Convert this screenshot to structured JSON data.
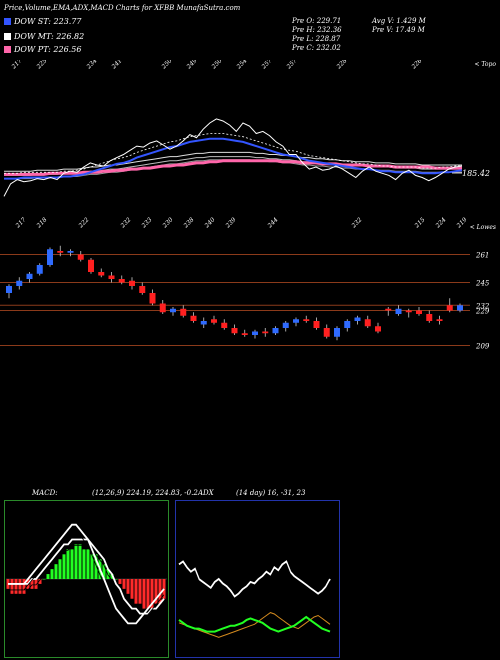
{
  "header": {
    "title": "Price,Volume,EMA,ADX,MACD Charts for XFBB MunafaSutra.com",
    "legend": [
      {
        "label": "DOW ST: 223.77",
        "color": "#3355ff"
      },
      {
        "label": "DOW MT: 226.82",
        "color": "#ffffff"
      },
      {
        "label": "DOW PT: 226.56",
        "color": "#ff66aa"
      }
    ],
    "stats_left": [
      "Pre O: 229.71",
      "Pre H: 232.36",
      "Pre L: 228.87",
      "Pre C: 232.02"
    ],
    "stats_right": [
      "Avg V: 1.429 M",
      "Pre V: 17.49 M"
    ]
  },
  "chart_data": [
    {
      "type": "line",
      "panel": "ema",
      "corner_label": "< Topo",
      "top_labels": [
        "217",
        "225",
        "",
        "234",
        "241",
        "",
        "250",
        "249",
        "250",
        "254",
        "257",
        "257",
        "",
        "228",
        "",
        "",
        "226"
      ],
      "bottom_labels": [
        "217",
        "218",
        "",
        "222",
        "",
        "232",
        "233",
        "230",
        "238",
        "240",
        "239",
        "",
        "244",
        "",
        "",
        "",
        "232",
        "",
        "",
        "215",
        "224",
        "219"
      ],
      "last_price_label": "185.42",
      "price": [
        188,
        200,
        204,
        202,
        203,
        205,
        204,
        206,
        204,
        210,
        212,
        211,
        216,
        220,
        218,
        217,
        222,
        225,
        228,
        232,
        236,
        235,
        239,
        241,
        237,
        233,
        236,
        241,
        247,
        244,
        252,
        258,
        262,
        260,
        256,
        250,
        258,
        255,
        248,
        250,
        246,
        240,
        236,
        228,
        228,
        220,
        214,
        216,
        213,
        214,
        217,
        214,
        210,
        206,
        212,
        216,
        212,
        210,
        208,
        204,
        210,
        213,
        208,
        206,
        203,
        206,
        210,
        214,
        216,
        217
      ],
      "ema_st": [
        205,
        205,
        205,
        206,
        206,
        206,
        206,
        206,
        206,
        207,
        207,
        208,
        209,
        211,
        213,
        215,
        217,
        219,
        220,
        222,
        225,
        227,
        229,
        231,
        233,
        235,
        236,
        238,
        240,
        241,
        242,
        243,
        243,
        243,
        242,
        241,
        240,
        238,
        236,
        234,
        232,
        230,
        228,
        227,
        226,
        224,
        222,
        221,
        220,
        219,
        218,
        217,
        216,
        215,
        214,
        214,
        213,
        212,
        212,
        211,
        211,
        211,
        211,
        210,
        210,
        210,
        211,
        211,
        212,
        213
      ],
      "ema_mt": [
        208,
        208,
        208,
        208,
        208,
        209,
        209,
        209,
        209,
        210,
        210,
        210,
        211,
        212,
        212,
        213,
        214,
        214,
        215,
        216,
        217,
        218,
        219,
        220,
        221,
        222,
        222,
        223,
        224,
        225,
        225,
        226,
        226,
        226,
        226,
        226,
        226,
        226,
        225,
        225,
        224,
        224,
        223,
        223,
        222,
        221,
        221,
        220,
        220,
        219,
        219,
        218,
        218,
        217,
        217,
        217,
        216,
        216,
        216,
        215,
        215,
        215,
        215,
        214,
        214,
        214,
        214,
        214,
        214,
        214
      ],
      "ema_pt": [
        209,
        209,
        209,
        209,
        209,
        209,
        209,
        210,
        210,
        210,
        210,
        210,
        211,
        211,
        211,
        212,
        212,
        213,
        213,
        214,
        214,
        215,
        215,
        216,
        217,
        217,
        218,
        218,
        219,
        220,
        220,
        221,
        221,
        222,
        222,
        222,
        222,
        222,
        222,
        222,
        222,
        222,
        221,
        221,
        221,
        220,
        220,
        220,
        219,
        219,
        219,
        218,
        218,
        218,
        218,
        217,
        217,
        217,
        217,
        216,
        216,
        216,
        216,
        216,
        216,
        215,
        215,
        215,
        215,
        215
      ],
      "ylim": [
        175,
        280
      ]
    },
    {
      "type": "candlestick",
      "panel": "price",
      "corner_label": "< Lowes",
      "levels": [
        261,
        245,
        232,
        229,
        209
      ],
      "candles": [
        [
          239,
          244,
          236,
          243,
          "up"
        ],
        [
          243,
          248,
          241,
          246,
          "up"
        ],
        [
          247,
          251,
          245,
          250,
          "up"
        ],
        [
          250,
          256,
          249,
          255,
          "up"
        ],
        [
          255,
          265,
          254,
          264,
          "up"
        ],
        [
          263,
          266,
          260,
          262,
          "down"
        ],
        [
          262,
          264,
          260,
          263,
          "up"
        ],
        [
          261,
          263,
          257,
          258,
          "down"
        ],
        [
          258,
          259,
          250,
          251,
          "down"
        ],
        [
          251,
          253,
          248,
          249,
          "down"
        ],
        [
          249,
          251,
          245,
          247,
          "down"
        ],
        [
          247,
          249,
          244,
          245,
          "down"
        ],
        [
          246,
          248,
          241,
          243,
          "down"
        ],
        [
          243,
          245,
          238,
          239,
          "down"
        ],
        [
          239,
          241,
          232,
          233,
          "down"
        ],
        [
          233,
          235,
          227,
          228,
          "down"
        ],
        [
          228,
          231,
          226,
          230,
          "up"
        ],
        [
          230,
          232,
          225,
          226,
          "down"
        ],
        [
          226,
          228,
          222,
          223,
          "down"
        ],
        [
          223,
          225,
          219,
          221,
          "up"
        ],
        [
          224,
          226,
          221,
          222,
          "down"
        ],
        [
          222,
          224,
          218,
          219,
          "down"
        ],
        [
          219,
          221,
          215,
          216,
          "down"
        ],
        [
          216,
          218,
          214,
          215,
          "down"
        ],
        [
          215,
          218,
          213,
          217,
          "up"
        ],
        [
          217,
          219,
          214,
          216,
          "down"
        ],
        [
          216,
          220,
          215,
          219,
          "up"
        ],
        [
          219,
          223,
          217,
          222,
          "up"
        ],
        [
          222,
          225,
          220,
          224,
          "up"
        ],
        [
          224,
          226,
          222,
          223,
          "down"
        ],
        [
          223,
          225,
          218,
          219,
          "down"
        ],
        [
          219,
          221,
          213,
          214,
          "down"
        ],
        [
          214,
          220,
          212,
          219,
          "up"
        ],
        [
          219,
          224,
          217,
          223,
          "up"
        ],
        [
          223,
          226,
          221,
          225,
          "up"
        ],
        [
          224,
          226,
          219,
          220,
          "down"
        ],
        [
          220,
          222,
          216,
          217,
          "down"
        ],
        [
          229,
          231,
          226,
          230,
          "down"
        ],
        [
          230,
          232,
          226,
          227,
          "up"
        ],
        [
          228,
          230,
          225,
          229,
          "down"
        ],
        [
          229,
          231,
          226,
          227,
          "down"
        ],
        [
          227,
          229,
          222,
          223,
          "down"
        ],
        [
          223,
          226,
          221,
          224,
          "down"
        ],
        [
          229,
          236,
          228,
          232,
          "down"
        ],
        [
          229,
          233,
          228,
          232,
          "up"
        ]
      ],
      "ylim": [
        195,
        275
      ]
    },
    {
      "type": "line",
      "panel": "macd",
      "title": "MACD:",
      "params": "(12,26,9) 224.19, 224.83, -0.2",
      "ylim": [
        -16,
        16
      ],
      "histogram": [
        -2,
        -3,
        -3,
        -3,
        -3,
        -2,
        -2,
        -2,
        -1,
        0,
        1,
        2,
        3,
        4,
        5,
        6,
        6,
        7,
        7,
        6,
        6,
        5,
        5,
        4,
        3,
        2,
        1,
        0,
        -1,
        -2,
        -3,
        -4,
        -5,
        -5,
        -6,
        -6,
        -6,
        -5,
        -5,
        -4
      ],
      "macd": [
        -1,
        -1,
        -1,
        -1,
        -1,
        0,
        1,
        2,
        3,
        4,
        5,
        6,
        7,
        8,
        9,
        10,
        11,
        11,
        10,
        9,
        8,
        6,
        4,
        2,
        0,
        -2,
        -4,
        -6,
        -7,
        -8,
        -9,
        -9,
        -9,
        -8,
        -7,
        -6,
        -5,
        -4,
        -3,
        -2
      ],
      "signal": [
        -1,
        -1,
        -1,
        -1,
        -1,
        -1,
        0,
        0,
        1,
        2,
        3,
        4,
        5,
        6,
        7,
        7,
        8,
        8,
        8,
        8,
        8,
        7,
        6,
        5,
        4,
        2,
        1,
        -1,
        -2,
        -4,
        -5,
        -6,
        -6,
        -7,
        -7,
        -7,
        -6,
        -6,
        -5,
        -4
      ]
    },
    {
      "type": "line",
      "panel": "adx",
      "title": "ADX",
      "params": "(14 day) 16, -31, 23",
      "ylim": [
        0,
        100
      ],
      "plus_di": [
        60,
        62,
        58,
        55,
        57,
        50,
        48,
        46,
        44,
        48,
        50,
        47,
        45,
        42,
        38,
        40,
        43,
        45,
        48,
        47,
        50,
        52,
        55,
        53,
        58,
        56,
        60,
        62,
        55,
        52,
        50,
        48,
        46,
        44,
        42,
        40,
        42,
        45,
        50
      ],
      "minus_di": [
        22,
        20,
        18,
        17,
        16,
        16,
        15,
        14,
        14,
        14,
        15,
        16,
        17,
        18,
        18,
        19,
        20,
        22,
        23,
        22,
        21,
        20,
        18,
        16,
        15,
        14,
        15,
        16,
        17,
        18,
        20,
        22,
        24,
        22,
        20,
        18,
        16,
        15,
        14
      ],
      "adx": [
        20,
        19,
        18,
        17,
        16,
        15,
        14,
        13,
        12,
        11,
        10,
        11,
        12,
        13,
        14,
        15,
        16,
        17,
        18,
        19,
        21,
        23,
        25,
        27,
        26,
        24,
        22,
        20,
        18,
        17,
        16,
        18,
        20,
        22,
        24,
        25,
        23,
        21,
        19
      ]
    }
  ]
}
